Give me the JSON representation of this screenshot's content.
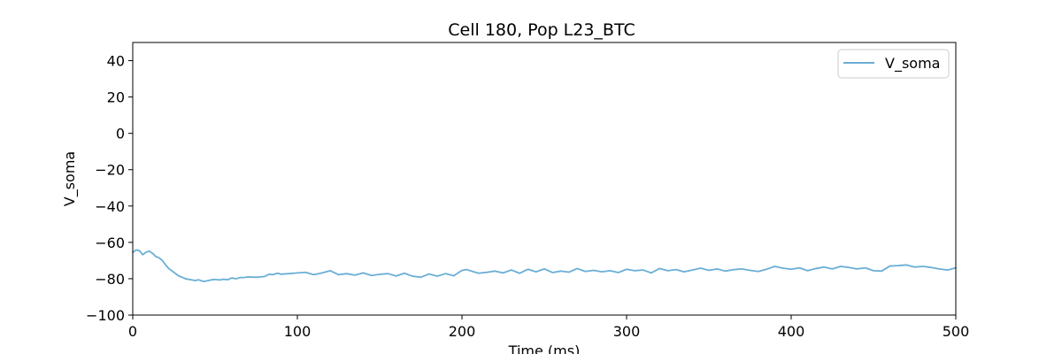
{
  "chart_data": {
    "type": "line",
    "title": "Cell 180, Pop L23_BTC",
    "xlabel": "Time (ms)",
    "ylabel": "V_soma",
    "xlim": [
      0,
      500
    ],
    "ylim": [
      -100,
      50
    ],
    "xticks": [
      0,
      100,
      200,
      300,
      400,
      500
    ],
    "yticks": [
      -100,
      -80,
      -60,
      -40,
      -20,
      0,
      20,
      40
    ],
    "grid": false,
    "legend_position": "top-right",
    "series": [
      {
        "name": "V_soma",
        "color": "#6baed6",
        "x": [
          0,
          2,
          4,
          6,
          8,
          10,
          12,
          14,
          16,
          18,
          20,
          22,
          25,
          28,
          30,
          32,
          35,
          38,
          40,
          43,
          45,
          48,
          50,
          53,
          55,
          58,
          60,
          63,
          65,
          68,
          70,
          75,
          80,
          83,
          85,
          88,
          90,
          95,
          100,
          105,
          110,
          115,
          120,
          125,
          130,
          135,
          140,
          145,
          150,
          155,
          160,
          165,
          170,
          175,
          180,
          185,
          190,
          195,
          200,
          203,
          205,
          210,
          215,
          220,
          225,
          230,
          235,
          240,
          245,
          250,
          255,
          260,
          265,
          270,
          275,
          280,
          285,
          290,
          295,
          300,
          305,
          310,
          315,
          320,
          325,
          330,
          335,
          340,
          345,
          350,
          355,
          360,
          365,
          370,
          375,
          380,
          385,
          390,
          395,
          400,
          405,
          410,
          415,
          420,
          425,
          430,
          435,
          440,
          445,
          450,
          455,
          460,
          465,
          470,
          475,
          480,
          485,
          490,
          495,
          500
        ],
        "values": [
          -65.5,
          -64.2,
          -64.5,
          -66.8,
          -65.5,
          -64.8,
          -66.0,
          -67.8,
          -68.5,
          -70.0,
          -72.5,
          -74.5,
          -76.5,
          -78.5,
          -79.2,
          -80.0,
          -80.5,
          -81.0,
          -80.6,
          -81.5,
          -81.2,
          -80.6,
          -80.4,
          -80.7,
          -80.3,
          -80.5,
          -79.6,
          -80.0,
          -79.4,
          -79.3,
          -79.0,
          -79.2,
          -78.8,
          -77.5,
          -77.8,
          -77.0,
          -77.5,
          -77.2,
          -76.8,
          -76.5,
          -77.8,
          -76.8,
          -75.6,
          -77.8,
          -77.2,
          -78.0,
          -76.8,
          -78.2,
          -77.6,
          -77.2,
          -78.5,
          -77.0,
          -78.6,
          -79.2,
          -77.4,
          -78.6,
          -77.2,
          -78.4,
          -75.4,
          -75.0,
          -75.6,
          -77.0,
          -76.5,
          -75.8,
          -76.8,
          -75.2,
          -77.0,
          -74.8,
          -76.2,
          -74.6,
          -76.6,
          -75.8,
          -76.4,
          -74.4,
          -76.0,
          -75.4,
          -76.2,
          -75.6,
          -76.6,
          -74.8,
          -75.6,
          -75.2,
          -76.8,
          -74.4,
          -75.6,
          -75.0,
          -76.2,
          -75.2,
          -74.2,
          -75.4,
          -74.6,
          -75.8,
          -75.0,
          -74.6,
          -75.4,
          -76.0,
          -74.8,
          -73.2,
          -74.2,
          -74.8,
          -74.0,
          -75.6,
          -74.4,
          -73.6,
          -74.6,
          -73.2,
          -73.8,
          -74.6,
          -74.0,
          -75.6,
          -75.8,
          -73.0,
          -72.8,
          -72.4,
          -73.6,
          -73.2,
          -73.8,
          -74.6,
          -75.2,
          -74.0
        ]
      }
    ]
  }
}
